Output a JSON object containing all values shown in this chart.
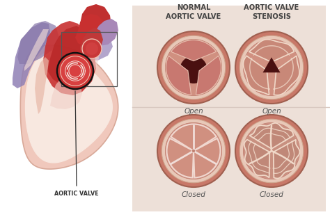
{
  "title_normal": "NORMAL\nAORTIC VALVE",
  "title_stenosis": "AORTIC VALVE\nSTENOSIS",
  "label_open": "Open",
  "label_closed": "Closed",
  "label_aortic": "AORTIC VALVE",
  "panel_bg": "#ede0d8",
  "heart_outer": "#f0c8be",
  "heart_inner_wall": "#e8b8ac",
  "heart_red": "#c83030",
  "heart_dark_red": "#a02020",
  "heart_pink_light": "#f0d8d0",
  "heart_purple": "#9080b8",
  "aorta_color": "#c03838",
  "valve_circle_outer": "#c87868",
  "valve_circle_mid": "#e0b0a0",
  "valve_circle_inner": "#d49080",
  "valve_open_dark": "#5a1515",
  "valve_leaflet_base": "#d09080",
  "valve_cream": "#f0d8c8",
  "text_color": "#555555",
  "title_color": "#444444",
  "white_line": "#f5ede8"
}
